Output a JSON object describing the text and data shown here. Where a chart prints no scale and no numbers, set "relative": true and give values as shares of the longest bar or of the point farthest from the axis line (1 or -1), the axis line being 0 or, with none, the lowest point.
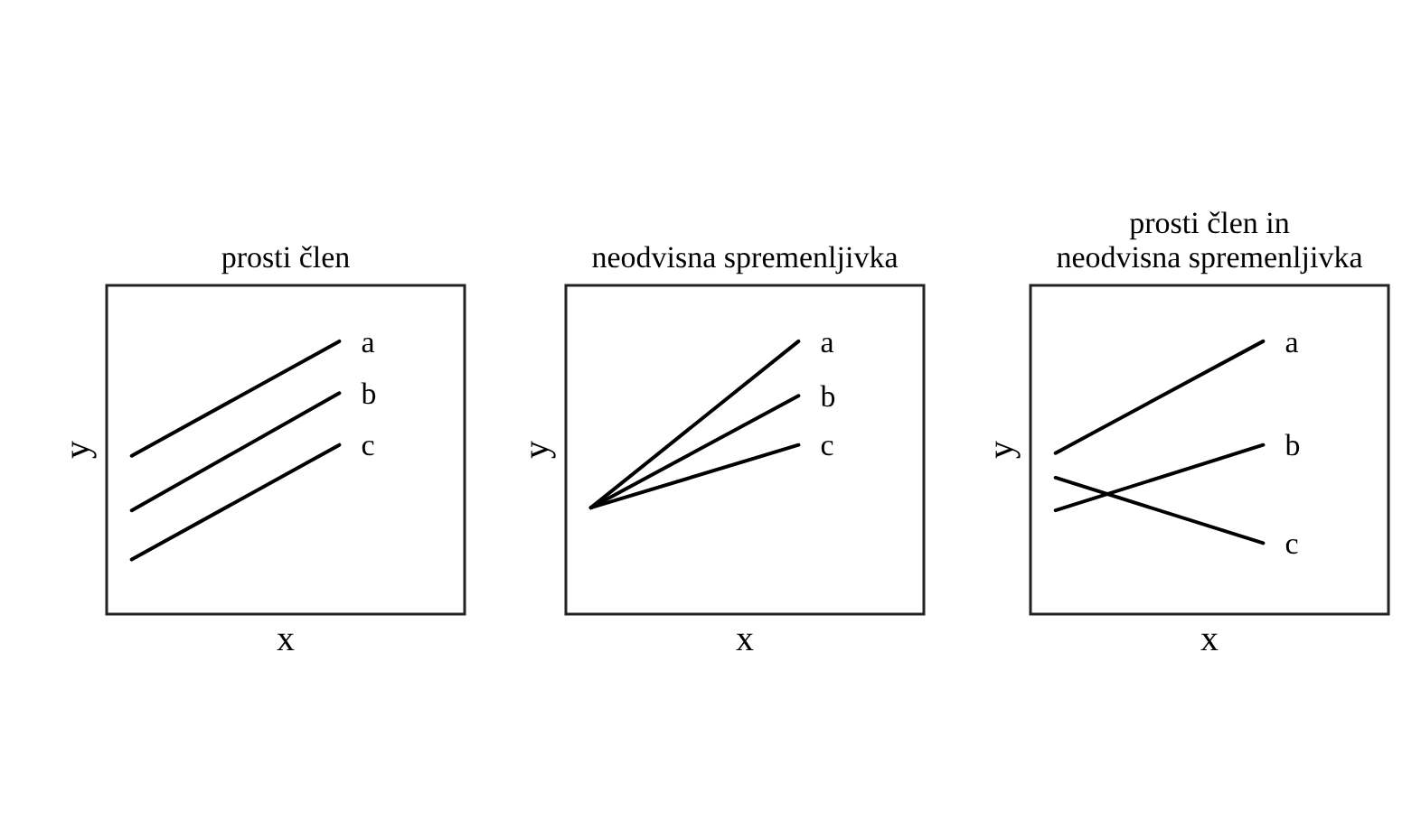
{
  "chart_data": [
    {
      "type": "line",
      "title": "prosti člen",
      "xlabel": "x",
      "ylabel": "y",
      "relative": true,
      "categories": [
        null,
        null
      ],
      "series": [
        {
          "name": "a",
          "color": "#000000",
          "values": [
            0.58,
            1
          ]
        },
        {
          "name": "b",
          "color": "#000000",
          "values": [
            0.38,
            0.81
          ]
        },
        {
          "name": "c",
          "color": "#000000",
          "values": [
            0.2,
            0.62
          ]
        }
      ]
    },
    {
      "type": "line",
      "title": "neodvisna spremenljivka",
      "xlabel": "x",
      "ylabel": "y",
      "relative": true,
      "categories": [
        null,
        null
      ],
      "series": [
        {
          "name": "a",
          "color": "#000000",
          "values": [
            0.39,
            1
          ]
        },
        {
          "name": "b",
          "color": "#000000",
          "values": [
            0.39,
            0.8
          ]
        },
        {
          "name": "c",
          "color": "#000000",
          "values": [
            0.39,
            0.62
          ]
        }
      ]
    },
    {
      "type": "line",
      "title": "prosti člen in\nneodvisna spremenljivka",
      "xlabel": "x",
      "ylabel": "y",
      "relative": true,
      "categories": [
        null,
        null
      ],
      "series": [
        {
          "name": "a",
          "color": "#000000",
          "values": [
            0.59,
            1
          ]
        },
        {
          "name": "b",
          "color": "#000000",
          "values": [
            0.38,
            0.62
          ]
        },
        {
          "name": "c",
          "color": "#000000",
          "values": [
            0.5,
            0.26
          ]
        }
      ]
    }
  ]
}
